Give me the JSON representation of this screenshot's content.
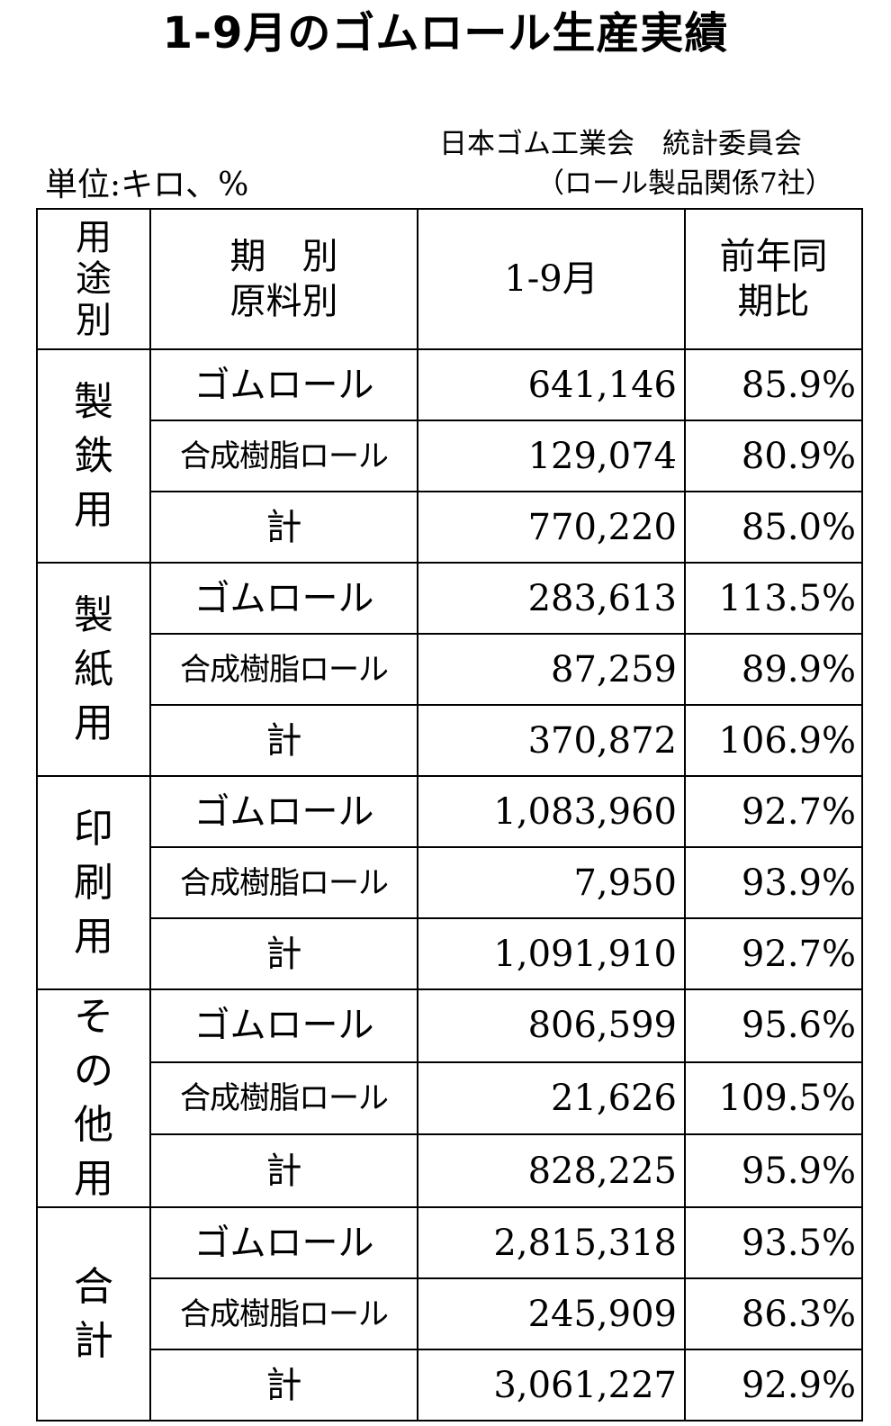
{
  "title": "1-9月のゴムロール生産実績",
  "source_line1": "日本ゴム工業会　統計委員会",
  "source_line2": "（ロール製品関係7社）",
  "unit": "単位:キロ、%",
  "header": {
    "category": "用途別",
    "period_label": "期　別",
    "material_label": "原料別",
    "period_value": "1-9月",
    "yoy": "前年同期比"
  },
  "groups": [
    {
      "category": "製鉄用",
      "rows": [
        {
          "material": "ゴムロール",
          "value": "641,146",
          "pct": "85.9%"
        },
        {
          "material": "合成樹脂ロール",
          "value": "129,074",
          "pct": "80.9%"
        },
        {
          "material": "計",
          "value": "770,220",
          "pct": "85.0%"
        }
      ]
    },
    {
      "category": "製紙用",
      "rows": [
        {
          "material": "ゴムロール",
          "value": "283,613",
          "pct": "113.5%"
        },
        {
          "material": "合成樹脂ロール",
          "value": "87,259",
          "pct": "89.9%"
        },
        {
          "material": "計",
          "value": "370,872",
          "pct": "106.9%"
        }
      ]
    },
    {
      "category": "印刷用",
      "rows": [
        {
          "material": "ゴムロール",
          "value": "1,083,960",
          "pct": "92.7%"
        },
        {
          "material": "合成樹脂ロール",
          "value": "7,950",
          "pct": "93.9%"
        },
        {
          "material": "計",
          "value": "1,091,910",
          "pct": "92.7%"
        }
      ]
    },
    {
      "category": "その他用",
      "rows": [
        {
          "material": "ゴムロール",
          "value": "806,599",
          "pct": "95.6%"
        },
        {
          "material": "合成樹脂ロール",
          "value": "21,626",
          "pct": "109.5%"
        },
        {
          "material": "計",
          "value": "828,225",
          "pct": "95.9%"
        }
      ]
    },
    {
      "category": "合計",
      "rows": [
        {
          "material": "ゴムロール",
          "value": "2,815,318",
          "pct": "93.5%"
        },
        {
          "material": "合成樹脂ロール",
          "value": "245,909",
          "pct": "86.3%"
        },
        {
          "material": "計",
          "value": "3,061,227",
          "pct": "92.9%"
        }
      ]
    }
  ]
}
